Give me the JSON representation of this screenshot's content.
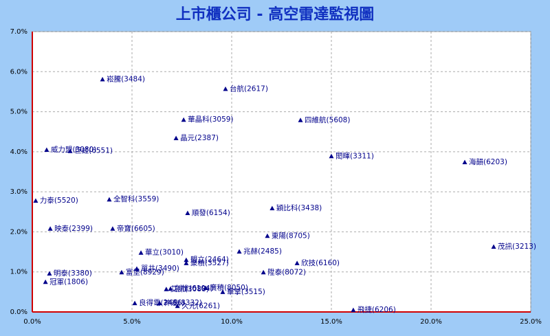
{
  "chart_data": {
    "type": "scatter",
    "title": "上市櫃公司 - 高空雷達監視圖",
    "color": "#00008b",
    "grid": true,
    "labels": [
      "崧騰(3484)",
      "台航(2617)",
      "華晶科(3059)",
      "四維航(5608)",
      "晶元(2387)",
      "威力盟(3080)",
      "巨虹(6551)",
      "閎暉(3311)",
      "海韻(6203)",
      "力泰(5520)",
      "全智科(3559)",
      "穎比科(3438)",
      "順發(6154)",
      "映泰(2399)",
      "帝寶(6605)",
      "東陽(8705)",
      "茂訊(3213)",
      "兆赫(2485)",
      "華立(3010)",
      "盟立(2464)",
      "聚積(3527)",
      "欣技(6160)",
      "單井(3490)",
      "富堡(8929)",
      "陞泰(8072)",
      "明泰(3380)",
      "冠軍(1806)",
      "艾訊(3088)",
      "創惟(6104)",
      "廣積(8050)",
      "華擎(3515)",
      "良得電(2466)",
      "神達(8332)",
      "久元(6261)",
      "飛捷(6206)"
    ],
    "x": [
      3.52,
      9.69,
      7.59,
      13.45,
      7.21,
      0.72,
      1.9,
      15.0,
      21.69,
      0.17,
      3.86,
      12.03,
      7.79,
      0.9,
      4.03,
      11.79,
      23.14,
      10.38,
      5.45,
      7.72,
      7.72,
      13.28,
      5.24,
      4.48,
      11.59,
      0.86,
      0.66,
      6.72,
      6.93,
      8.69,
      9.55,
      5.14,
      6.38,
      7.28,
      16.1
    ],
    "values": [
      5.81,
      5.57,
      4.8,
      4.79,
      4.34,
      4.05,
      4.02,
      3.89,
      3.74,
      2.78,
      2.81,
      2.59,
      2.47,
      2.08,
      2.08,
      1.9,
      1.63,
      1.51,
      1.48,
      1.3,
      1.22,
      1.22,
      1.08,
      0.99,
      0.99,
      0.96,
      0.75,
      0.57,
      0.58,
      0.6,
      0.5,
      0.22,
      0.22,
      0.15,
      0.05
    ],
    "xlim": [
      0,
      25
    ],
    "ylim": [
      0,
      7
    ],
    "xticks": [
      {
        "value": 0,
        "label": "0.0%"
      },
      {
        "value": 5,
        "label": "5.0%"
      },
      {
        "value": 10,
        "label": "10.0%"
      },
      {
        "value": 15,
        "label": "15.0%"
      },
      {
        "value": 20,
        "label": "20.0%"
      },
      {
        "value": 25,
        "label": "25.0%"
      }
    ],
    "yticks": [
      {
        "value": 0,
        "label": "0.0%"
      },
      {
        "value": 1,
        "label": "1.0%"
      },
      {
        "value": 2,
        "label": "2.0%"
      },
      {
        "value": 3,
        "label": "3.0%"
      },
      {
        "value": 4,
        "label": "4.0%"
      },
      {
        "value": 5,
        "label": "5.0%"
      },
      {
        "value": 6,
        "label": "6.0%"
      },
      {
        "value": 7,
        "label": "7.0%"
      }
    ]
  }
}
